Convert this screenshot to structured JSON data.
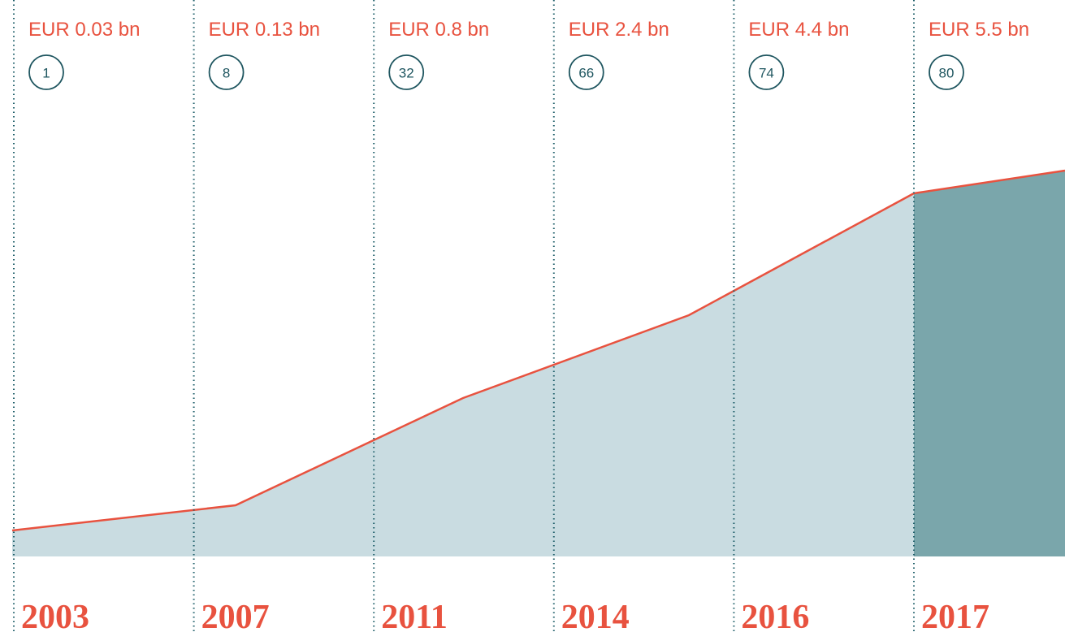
{
  "milestones": [
    {
      "amount": "EUR 0.03 bn",
      "count": 1,
      "year": "2003"
    },
    {
      "amount": "EUR 0.13 bn",
      "count": 8,
      "year": "2007"
    },
    {
      "amount": "EUR 0.8 bn",
      "count": 32,
      "year": "2011"
    },
    {
      "amount": "EUR 2.4 bn",
      "count": 66,
      "year": "2014"
    },
    {
      "amount": "EUR 4.4 bn",
      "count": 74,
      "year": "2016"
    },
    {
      "amount": "EUR 5.5 bn",
      "count": 80,
      "year": "2017"
    }
  ]
}
